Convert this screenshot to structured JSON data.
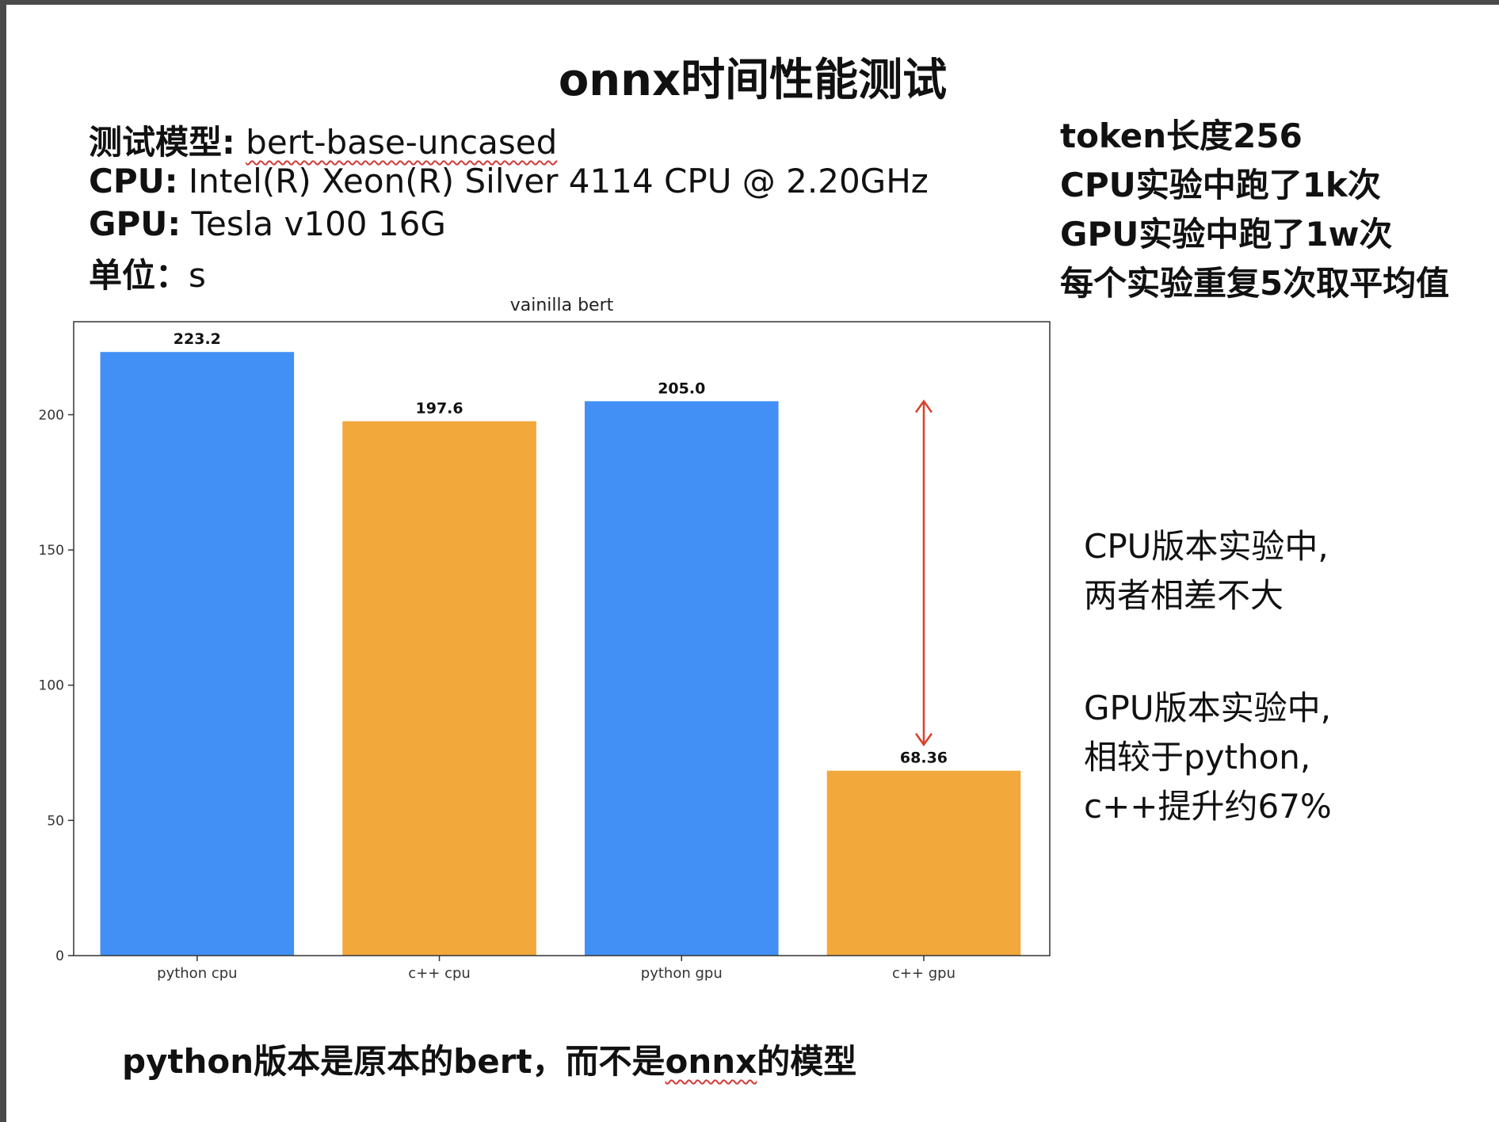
{
  "slide": {
    "title": "onnx时间性能测试",
    "info": [
      {
        "label": "测试模型:",
        "value_pre": " ",
        "value_underlined": "bert-base-uncased"
      },
      {
        "label": "CPU:",
        "value_pre": " Intel(R) Xeon(R) Silver 4114 CPU @ 2.20GHz",
        "value_underlined": ""
      },
      {
        "label": "GPU:",
        "value_pre": " Tesla v100 16G",
        "value_underlined": ""
      },
      {
        "label": "单位：",
        "value_pre": "s",
        "value_underlined": ""
      }
    ],
    "settings": [
      "token长度256",
      "CPU实验中跑了1k次",
      "GPU实验中跑了1w次",
      "每个实验重复5次取平均值"
    ],
    "notes": [
      "CPU版本实验中,",
      "两者相差不大",
      "GPU版本实验中,",
      "相较于python,",
      "c++提升约67%"
    ],
    "footer": {
      "pre": "python版本是原本的bert，而不是",
      "underlined": "onnx",
      "post": "的模型"
    }
  },
  "chart_data": {
    "type": "bar",
    "title": "vainilla bert",
    "categories": [
      "python cpu",
      "c++ cpu",
      "python gpu",
      "c++ gpu"
    ],
    "values": [
      223.2,
      197.6,
      205.0,
      68.36
    ],
    "value_labels": [
      "223.2",
      "197.6",
      "205.0",
      "68.36"
    ],
    "bar_colors": [
      "#4290f5",
      "#f2a83b",
      "#4290f5",
      "#f2a83b"
    ],
    "xlabel": "",
    "ylabel": "",
    "ylim": [
      0,
      234.4
    ],
    "yticks": [
      0,
      50,
      100,
      150,
      200
    ],
    "grid": false,
    "annotation": {
      "type": "double-arrow",
      "category": "c++ gpu",
      "from_value": 205.0,
      "to_value": 78,
      "color": "#d9402b"
    }
  }
}
